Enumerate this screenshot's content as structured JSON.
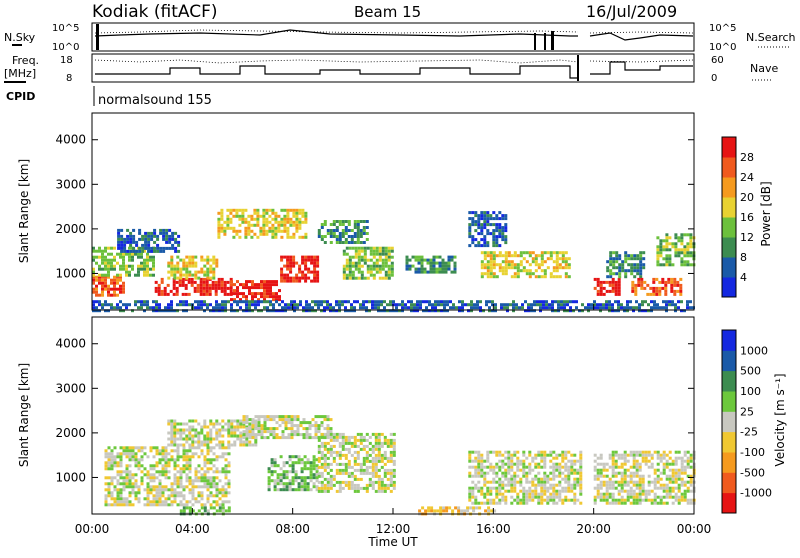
{
  "header": {
    "station": "Kodiak (fitACF)",
    "beam": "Beam 15",
    "date": "16/Jul/2009"
  },
  "strip_labels": {
    "nsky": "N.Sky",
    "nsearch": "N.Search",
    "freq_line1": "Freq.",
    "freq_line2": "[MHz]",
    "nave": "Nave",
    "cpid": "CPID",
    "cpid_value": "normalsound 155",
    "noise_ticks_left": [
      "10^5",
      "10^0"
    ],
    "noise_ticks_right": [
      "10^5",
      "10^0"
    ],
    "freq_ticks": [
      "18",
      "8"
    ],
    "nave_ticks": [
      "60",
      "0"
    ]
  },
  "colors": {
    "power_scale": [
      "#1428e0",
      "#1a5aa8",
      "#3c8c50",
      "#6cc03c",
      "#e8d232",
      "#f59a1e",
      "#f05a1e",
      "#e61414"
    ],
    "velocity_scale": [
      "#e61414",
      "#f05a1e",
      "#f59a1e",
      "#f0c832",
      "#c8c8c0",
      "#6cc83c",
      "#3c8c50",
      "#1a5aa8",
      "#1428e0"
    ],
    "ground_scatter": "#c8c8c0"
  },
  "chart_data": [
    {
      "type": "heatmap",
      "name": "power",
      "ylabel": "Slant Range [km]",
      "colorbar_label": "Power [dB]",
      "colorbar_ticks": [
        "28",
        "24",
        "20",
        "16",
        "12",
        "8",
        "4"
      ],
      "xlim": [
        0,
        24
      ],
      "ylim": [
        180,
        4600
      ],
      "yticks": [
        "1000",
        "2000",
        "3000",
        "4000"
      ],
      "regions": [
        {
          "t": [
            0.0,
            1.2
          ],
          "r": [
            500,
            950
          ],
          "level": 6
        },
        {
          "t": [
            0.0,
            2.5
          ],
          "r": [
            950,
            1600
          ],
          "level": 3
        },
        {
          "t": [
            1.0,
            3.5
          ],
          "r": [
            1500,
            2000
          ],
          "level": 1
        },
        {
          "t": [
            2.5,
            5.5
          ],
          "r": [
            500,
            900
          ],
          "level": 7
        },
        {
          "t": [
            3.0,
            5.0
          ],
          "r": [
            900,
            1400
          ],
          "level": 4
        },
        {
          "t": [
            5.5,
            7.5
          ],
          "r": [
            400,
            850
          ],
          "level": 7
        },
        {
          "t": [
            5.0,
            8.5
          ],
          "r": [
            1800,
            2450
          ],
          "level": 4
        },
        {
          "t": [
            7.5,
            9.0
          ],
          "r": [
            800,
            1400
          ],
          "level": 7
        },
        {
          "t": [
            9.0,
            11.0
          ],
          "r": [
            1700,
            2200
          ],
          "level": 2
        },
        {
          "t": [
            10.0,
            12.0
          ],
          "r": [
            900,
            1600
          ],
          "level": 3
        },
        {
          "t": [
            12.5,
            14.5
          ],
          "r": [
            1000,
            1400
          ],
          "level": 2
        },
        {
          "t": [
            15.5,
            19.0
          ],
          "r": [
            900,
            1500
          ],
          "level": 4
        },
        {
          "t": [
            15.0,
            16.5
          ],
          "r": [
            1600,
            2400
          ],
          "level": 1
        },
        {
          "t": [
            20.0,
            21.0
          ],
          "r": [
            500,
            900
          ],
          "level": 7
        },
        {
          "t": [
            20.5,
            22.0
          ],
          "r": [
            900,
            1500
          ],
          "level": 2
        },
        {
          "t": [
            21.5,
            23.5
          ],
          "r": [
            500,
            900
          ],
          "level": 6
        },
        {
          "t": [
            22.5,
            24.0
          ],
          "r": [
            1200,
            1900
          ],
          "level": 3
        },
        {
          "t": [
            0.0,
            24.0
          ],
          "r": [
            180,
            400
          ],
          "level": 1
        }
      ]
    },
    {
      "type": "heatmap",
      "name": "velocity",
      "ylabel": "Slant Range [km]",
      "colorbar_label": "Velocity [m s⁻¹]",
      "colorbar_ticks": [
        "1000",
        "500",
        "100",
        "25",
        "-25",
        "-100",
        "-500",
        "-1000"
      ],
      "xlabel": "Time UT",
      "xticks": [
        "00:00",
        "04:00",
        "08:00",
        "12:00",
        "16:00",
        "20:00",
        "00:00"
      ],
      "xlim": [
        0,
        24
      ],
      "ylim": [
        180,
        4600
      ],
      "yticks": [
        "1000",
        "2000",
        "3000",
        "4000"
      ],
      "regions": [
        {
          "t": [
            0.5,
            5.5
          ],
          "r": [
            400,
            1700
          ],
          "level": 4
        },
        {
          "t": [
            3.0,
            6.5
          ],
          "r": [
            1700,
            2300
          ],
          "level": 4
        },
        {
          "t": [
            6.0,
            9.5
          ],
          "r": [
            1900,
            2400
          ],
          "level": 4
        },
        {
          "t": [
            7.0,
            9.0
          ],
          "r": [
            700,
            1500
          ],
          "level": 5
        },
        {
          "t": [
            9.0,
            12.0
          ],
          "r": [
            700,
            2000
          ],
          "level": 4
        },
        {
          "t": [
            15.0,
            19.5
          ],
          "r": [
            400,
            1600
          ],
          "level": 4
        },
        {
          "t": [
            20.0,
            24.0
          ],
          "r": [
            400,
            1600
          ],
          "level": 4
        },
        {
          "t": [
            3.5,
            5.5
          ],
          "r": [
            180,
            350
          ],
          "level": 5
        },
        {
          "t": [
            13.0,
            16.0
          ],
          "r": [
            180,
            350
          ],
          "level": 3
        }
      ]
    }
  ]
}
